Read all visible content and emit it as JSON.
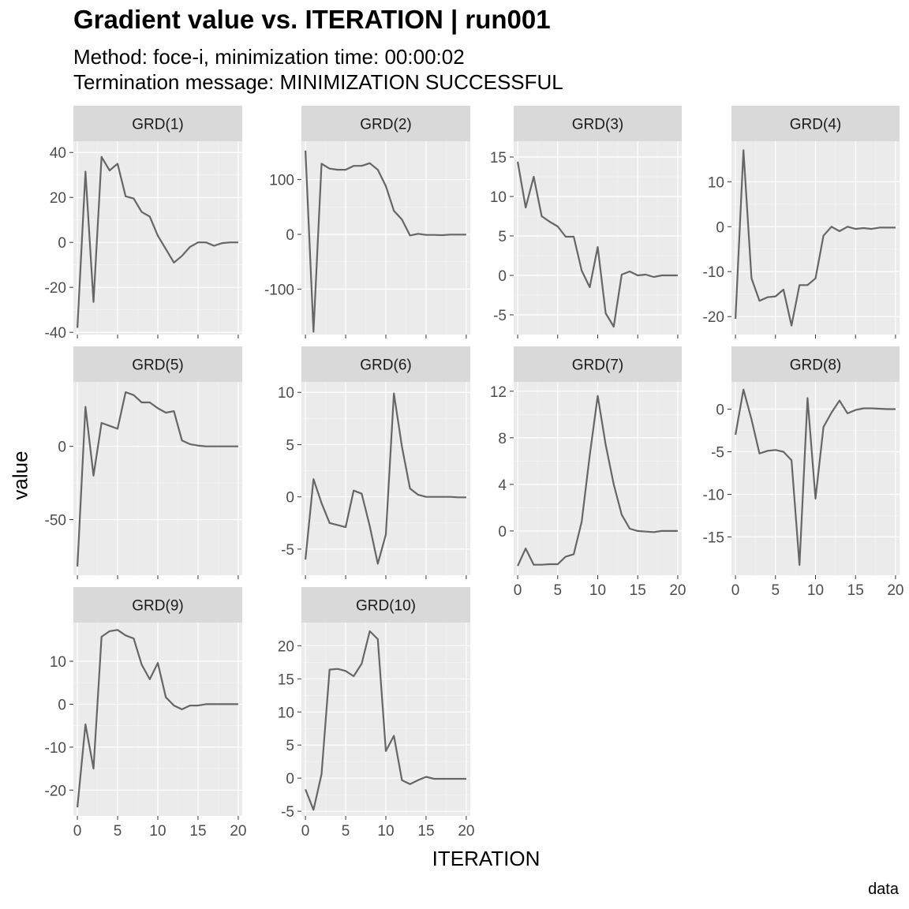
{
  "title": "Gradient value vs. ITERATION | run001",
  "subtitle_line1": "Method: foce-i, minimization time: 00:00:02",
  "subtitle_line2": "Termination message: MINIMIZATION SUCCESSFUL",
  "caption": "data",
  "chart_data": {
    "type": "line",
    "xlabel": "ITERATION",
    "ylabel": "value",
    "x": [
      0,
      1,
      2,
      3,
      4,
      5,
      6,
      7,
      8,
      9,
      10,
      11,
      12,
      13,
      14,
      15,
      16,
      17,
      18,
      19,
      20
    ],
    "xticks": [
      0,
      5,
      10,
      15,
      20
    ],
    "xlim": [
      -0.5,
      20.5
    ],
    "grid": true,
    "facets": [
      {
        "label": "GRD(1)",
        "yticks": [
          -40,
          -20,
          0,
          20,
          40
        ],
        "ylim": [
          -41,
          45
        ],
        "values": [
          -38,
          31.5,
          -26.5,
          38,
          32,
          35,
          20.5,
          19.5,
          13.5,
          11.5,
          3,
          -3,
          -9,
          -6,
          -2,
          0,
          0,
          -1.5,
          -0.3,
          0,
          0
        ]
      },
      {
        "label": "GRD(2)",
        "yticks": [
          -100,
          0,
          100
        ],
        "ylim": [
          -183,
          170
        ],
        "values": [
          153,
          -178,
          129,
          120,
          118,
          118,
          125,
          125,
          130,
          118,
          88,
          43,
          27,
          -2,
          1,
          -1,
          -1,
          -1.5,
          -0.5,
          -0.5,
          -0.5
        ]
      },
      {
        "label": "GRD(3)",
        "yticks": [
          -5,
          0,
          5,
          10,
          15
        ],
        "ylim": [
          -7.5,
          17
        ],
        "values": [
          14.4,
          8.6,
          12.5,
          7.5,
          6.8,
          6.2,
          4.9,
          4.9,
          0.6,
          -1.5,
          3.6,
          -4.8,
          -6.5,
          0.1,
          0.5,
          0.0,
          0.1,
          -0.2,
          0.0,
          0.0,
          0.0
        ]
      },
      {
        "label": "GRD(4)",
        "yticks": [
          -20,
          -10,
          0,
          10
        ],
        "ylim": [
          -24,
          19
        ],
        "values": [
          -20.5,
          17,
          -11.5,
          -16.5,
          -15.7,
          -15.5,
          -14,
          -22,
          -13,
          -13,
          -11.5,
          -2,
          0,
          -1,
          0,
          -0.5,
          -0.3,
          -0.5,
          -0.2,
          -0.2,
          -0.2
        ]
      },
      {
        "label": "GRD(5)",
        "yticks": [
          -50,
          0
        ],
        "ylim": [
          -88,
          44
        ],
        "values": [
          -82,
          27,
          -20,
          16,
          14,
          12,
          37,
          35,
          30,
          30,
          26,
          23,
          24,
          4,
          1.5,
          0.5,
          0,
          0,
          0,
          0,
          0
        ]
      },
      {
        "label": "GRD(6)",
        "yticks": [
          -5,
          0,
          5,
          10
        ],
        "ylim": [
          -7.5,
          11
        ],
        "values": [
          -6,
          1.7,
          -0.6,
          -2.5,
          -2.7,
          -2.9,
          0.6,
          0.3,
          -2.8,
          -6.4,
          -3.6,
          9.9,
          4.8,
          0.8,
          0.2,
          0,
          0,
          0,
          0,
          -0.05,
          -0.05
        ]
      },
      {
        "label": "GRD(7)",
        "yticks": [
          0,
          4,
          8,
          12
        ],
        "ylim": [
          -3.8,
          12.8
        ],
        "values": [
          -3,
          -1.5,
          -2.9,
          -2.9,
          -2.85,
          -2.85,
          -2.2,
          -2,
          0.8,
          6.5,
          11.6,
          7.4,
          4,
          1.4,
          0.2,
          0,
          -0.05,
          -0.1,
          0,
          0,
          0
        ]
      },
      {
        "label": "GRD(8)",
        "yticks": [
          -15,
          -10,
          -5,
          0
        ],
        "ylim": [
          -19.5,
          3.2
        ],
        "values": [
          -3,
          2.3,
          -1.2,
          -5.2,
          -4.9,
          -4.8,
          -5,
          -6,
          -18.3,
          1.3,
          -10.5,
          -2.1,
          -0.4,
          1,
          -0.5,
          -0.1,
          0.1,
          0.1,
          0.05,
          0,
          0
        ]
      },
      {
        "label": "GRD(9)",
        "yticks": [
          -20,
          -10,
          0,
          10
        ],
        "ylim": [
          -26,
          19
        ],
        "values": [
          -24,
          -4.7,
          -15,
          15.7,
          17,
          17.3,
          16,
          15.3,
          9.2,
          5.8,
          9.6,
          1.6,
          -0.3,
          -1.2,
          -0.3,
          -0.3,
          0,
          0,
          0,
          0,
          0
        ]
      },
      {
        "label": "GRD(10)",
        "yticks": [
          -5,
          0,
          5,
          10,
          15,
          20
        ],
        "ylim": [
          -5.7,
          23.5
        ],
        "values": [
          -1.7,
          -4.8,
          0.6,
          16.4,
          16.5,
          16.2,
          15.4,
          17.3,
          22.2,
          21,
          4.1,
          6.4,
          -0.3,
          -0.9,
          -0.3,
          0.2,
          -0.1,
          -0.1,
          -0.1,
          -0.1,
          -0.1
        ]
      }
    ]
  }
}
